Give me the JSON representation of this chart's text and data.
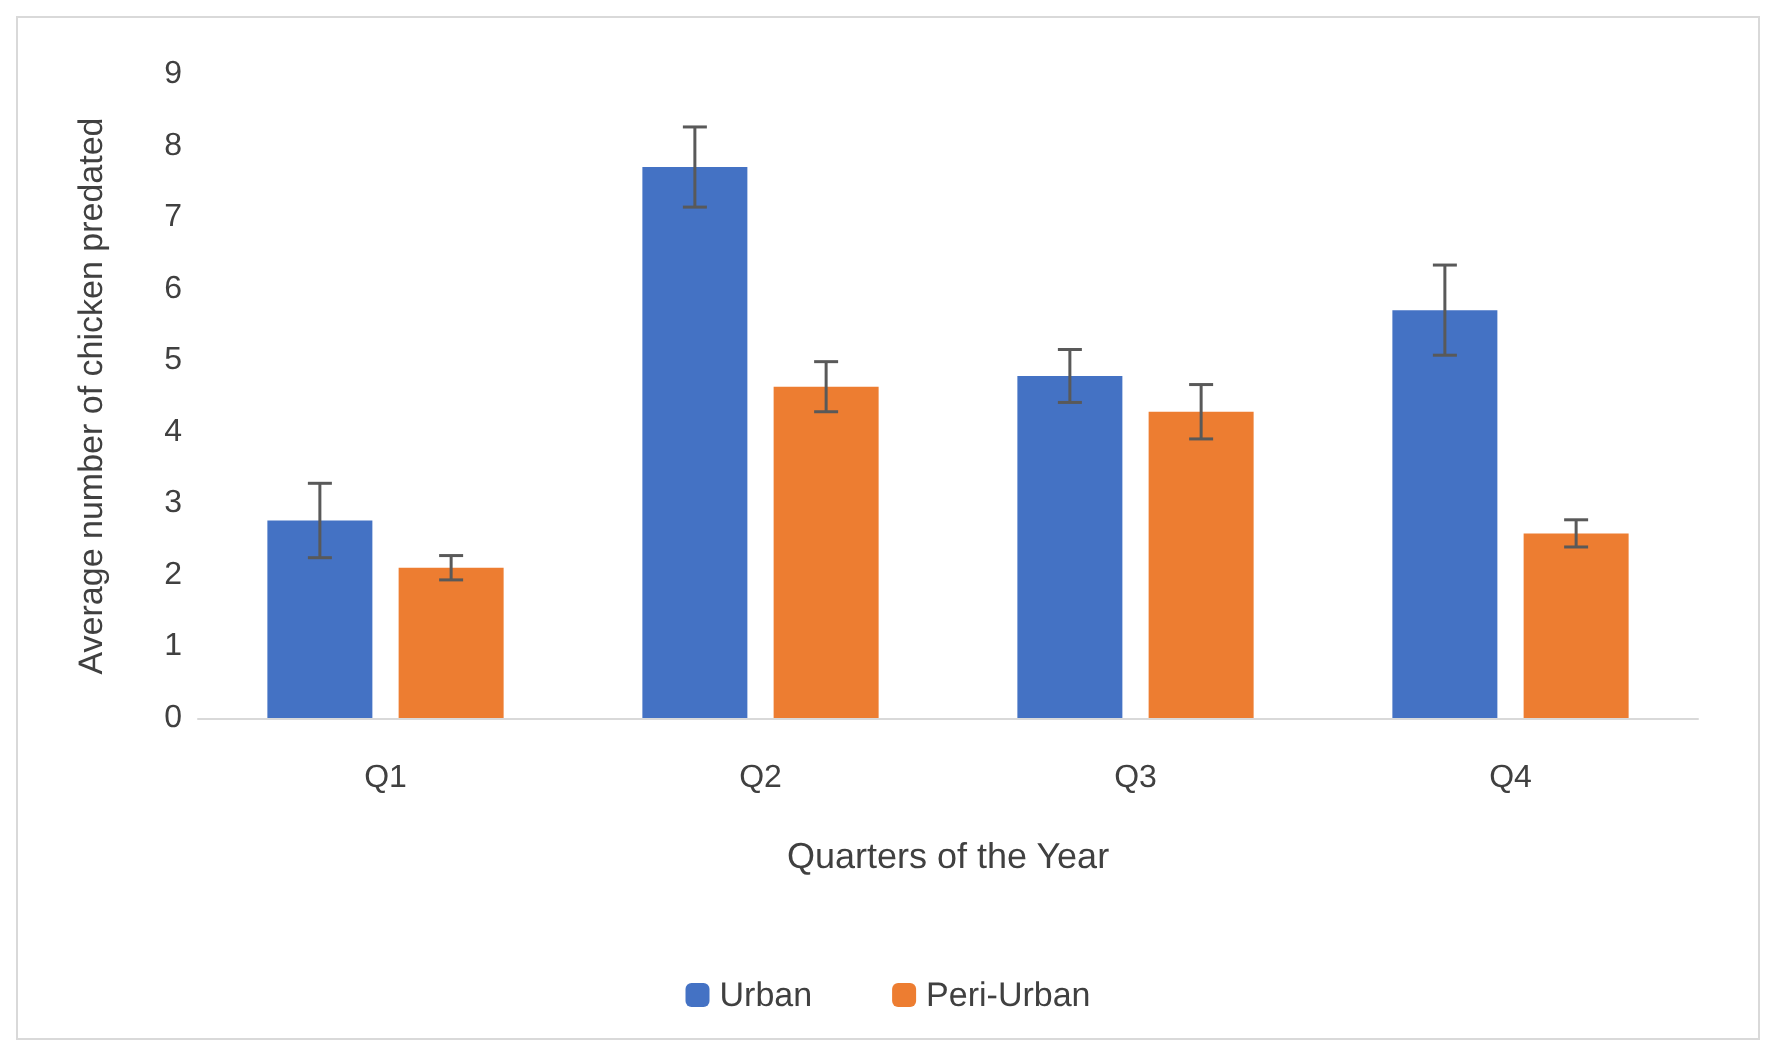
{
  "chart_data": {
    "type": "bar",
    "xlabel": "Quarters of the Year",
    "ylabel": "Average number of chicken predated",
    "categories": [
      "Q1",
      "Q2",
      "Q3",
      "Q4"
    ],
    "series": [
      {
        "name": "Urban",
        "color": "#4472c4",
        "values": [
          2.76,
          7.7,
          4.78,
          5.7
        ],
        "errors": [
          0.52,
          0.56,
          0.37,
          0.63
        ]
      },
      {
        "name": "Peri-Urban",
        "color": "#ed7d31",
        "values": [
          2.1,
          4.63,
          4.28,
          2.58
        ],
        "errors": [
          0.17,
          0.35,
          0.38,
          0.19
        ]
      }
    ],
    "ylim": [
      0,
      9
    ],
    "yticks": [
      0,
      1,
      2,
      3,
      4,
      5,
      6,
      7,
      8,
      9
    ],
    "grid": false,
    "legend": "bottom"
  }
}
